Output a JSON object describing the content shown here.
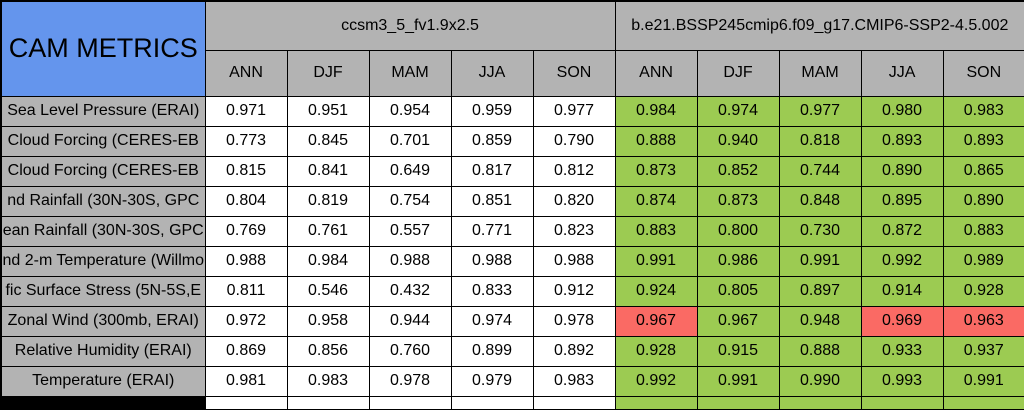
{
  "table": {
    "title": "CAM METRICS",
    "season_columns": [
      "ANN",
      "DJF",
      "MAM",
      "JJA",
      "SON"
    ],
    "groups": [
      {
        "name": "ccsm3_5_fv1.9x2.5"
      },
      {
        "name": "b.e21.BSSP245cmip6.f09_g17.CMIP6-SSP2-4.5.002"
      }
    ],
    "rows": [
      {
        "label": "Sea Level Pressure (ERAI)",
        "g1": [
          "0.971",
          "0.951",
          "0.954",
          "0.959",
          "0.977"
        ],
        "g2": [
          "0.984",
          "0.974",
          "0.977",
          "0.980",
          "0.983"
        ]
      },
      {
        "label": "Cloud Forcing (CERES-EB",
        "g1": [
          "0.773",
          "0.845",
          "0.701",
          "0.859",
          "0.790"
        ],
        "g2": [
          "0.888",
          "0.940",
          "0.818",
          "0.893",
          "0.893"
        ]
      },
      {
        "label": "Cloud Forcing (CERES-EB",
        "g1": [
          "0.815",
          "0.841",
          "0.649",
          "0.817",
          "0.812"
        ],
        "g2": [
          "0.873",
          "0.852",
          "0.744",
          "0.890",
          "0.865"
        ]
      },
      {
        "label": "nd Rainfall (30N-30S, GPC",
        "g1": [
          "0.804",
          "0.819",
          "0.754",
          "0.851",
          "0.820"
        ],
        "g2": [
          "0.874",
          "0.873",
          "0.848",
          "0.895",
          "0.890"
        ]
      },
      {
        "label": "ean Rainfall (30N-30S, GPC",
        "g1": [
          "0.769",
          "0.761",
          "0.557",
          "0.771",
          "0.823"
        ],
        "g2": [
          "0.883",
          "0.800",
          "0.730",
          "0.872",
          "0.883"
        ]
      },
      {
        "label": "nd 2-m Temperature (Willmo",
        "g1": [
          "0.988",
          "0.984",
          "0.988",
          "0.988",
          "0.988"
        ],
        "g2": [
          "0.991",
          "0.986",
          "0.991",
          "0.992",
          "0.989"
        ]
      },
      {
        "label": "fic Surface Stress (5N-5S,E",
        "g1": [
          "0.811",
          "0.546",
          "0.432",
          "0.833",
          "0.912"
        ],
        "g2": [
          "0.924",
          "0.805",
          "0.897",
          "0.914",
          "0.928"
        ]
      },
      {
        "label": "Zonal Wind (300mb, ERAI)",
        "g1": [
          "0.972",
          "0.958",
          "0.944",
          "0.974",
          "0.978"
        ],
        "g2": [
          "0.967",
          "0.967",
          "0.948",
          "0.969",
          "0.963"
        ],
        "g2_red": [
          0,
          3,
          4
        ]
      },
      {
        "label": "Relative Humidity (ERAI)",
        "g1": [
          "0.869",
          "0.856",
          "0.760",
          "0.899",
          "0.892"
        ],
        "g2": [
          "0.928",
          "0.915",
          "0.888",
          "0.933",
          "0.937"
        ]
      },
      {
        "label": "Temperature (ERAI)",
        "g1": [
          "0.981",
          "0.983",
          "0.978",
          "0.979",
          "0.983"
        ],
        "g2": [
          "0.992",
          "0.991",
          "0.990",
          "0.993",
          "0.991"
        ]
      }
    ],
    "colors": {
      "title_bg": "#6495ED",
      "header_bg": "#B3B3B3",
      "good_bg": "#9CCB52",
      "bad_bg": "#FA6A64",
      "neutral_bg": "#FFFFFF",
      "border": "#000000"
    }
  }
}
